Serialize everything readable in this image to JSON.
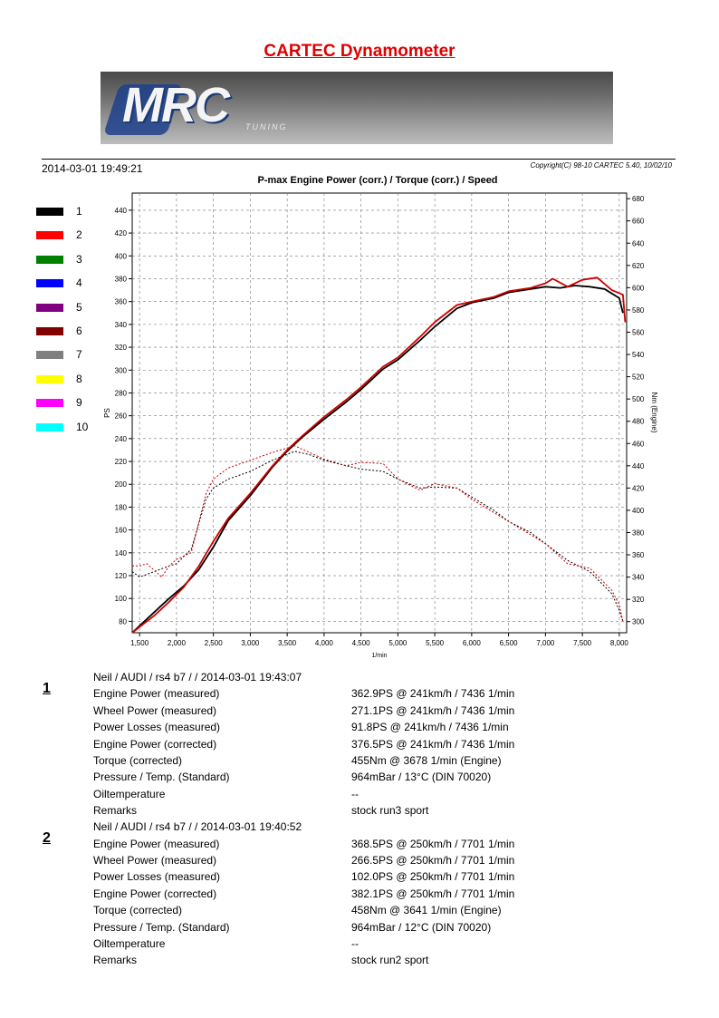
{
  "header": {
    "title": "CARTEC Dynamometer",
    "banner_logo_text": "MRC",
    "banner_logo_sub": "TUNING",
    "datetime": "2014-03-01 19:49:21",
    "copyright": "Copyright(C) 98-10 CARTEC 5.40, 10/02/10"
  },
  "legend": [
    {
      "label": "1",
      "color": "#000000"
    },
    {
      "label": "2",
      "color": "#ff0000"
    },
    {
      "label": "3",
      "color": "#008000"
    },
    {
      "label": "4",
      "color": "#0000ff"
    },
    {
      "label": "5",
      "color": "#800080"
    },
    {
      "label": "6",
      "color": "#800000"
    },
    {
      "label": "7",
      "color": "#808080"
    },
    {
      "label": "8",
      "color": "#ffff00"
    },
    {
      "label": "9",
      "color": "#ff00ff"
    },
    {
      "label": "10",
      "color": "#00ffff"
    }
  ],
  "chart_data": {
    "type": "line",
    "title": "P-max Engine Power (corr.) / Torque (corr.) / Speed",
    "xlabel": "1/min",
    "ylabel": "PS",
    "y2label": "Nm (Engine)",
    "xlim": [
      1400,
      8100
    ],
    "ylim": [
      70,
      455
    ],
    "y2lim": [
      290,
      685
    ],
    "x_ticks": [
      1500,
      2000,
      2500,
      3000,
      3500,
      4000,
      4500,
      5000,
      5500,
      6000,
      6500,
      7000,
      7500,
      8000
    ],
    "x_tick_labels": [
      "1,500",
      "2,000",
      "2,500",
      "3,000",
      "3,500",
      "4,000",
      "4,500",
      "5,000",
      "5,500",
      "6,000",
      "6,500",
      "7,000",
      "7,500",
      "8,000"
    ],
    "y_ticks": [
      80,
      100,
      120,
      140,
      160,
      180,
      200,
      220,
      240,
      260,
      280,
      300,
      320,
      340,
      360,
      380,
      400,
      420,
      440
    ],
    "y2_ticks": [
      300,
      320,
      340,
      360,
      380,
      400,
      420,
      440,
      460,
      480,
      500,
      520,
      540,
      560,
      580,
      600,
      620,
      640,
      660,
      680
    ],
    "grid": true,
    "series": [
      {
        "name": "1",
        "axis": "y",
        "kind": "power",
        "color": "#000000",
        "x": [
          1400,
          1500,
          1700,
          1900,
          2100,
          2300,
          2500,
          2700,
          3000,
          3300,
          3500,
          3700,
          4000,
          4300,
          4500,
          4800,
          5000,
          5300,
          5500,
          5800,
          6000,
          6300,
          6500,
          6800,
          7000,
          7200,
          7400,
          7600,
          7800,
          8000,
          8050
        ],
        "values": [
          70,
          76,
          88,
          100,
          111,
          125,
          145,
          168,
          190,
          215,
          229,
          241,
          257,
          272,
          283,
          301,
          309,
          326,
          338,
          354,
          359,
          363,
          368,
          371,
          373,
          372,
          374,
          373,
          371,
          363,
          350
        ]
      },
      {
        "name": "2",
        "axis": "y",
        "kind": "power",
        "color": "#cc0000",
        "x": [
          1400,
          1500,
          1700,
          1900,
          2100,
          2300,
          2500,
          2700,
          3000,
          3300,
          3500,
          3700,
          4000,
          4300,
          4500,
          4800,
          5000,
          5300,
          5500,
          5800,
          6000,
          6300,
          6500,
          6800,
          7000,
          7100,
          7300,
          7500,
          7700,
          7900,
          8050,
          8080
        ],
        "values": [
          70,
          75,
          85,
          97,
          110,
          128,
          150,
          170,
          192,
          216,
          230,
          242,
          259,
          274,
          285,
          303,
          311,
          329,
          342,
          357,
          360,
          364,
          369,
          372,
          376,
          380,
          373,
          379,
          381,
          370,
          366,
          342
        ]
      },
      {
        "name": "1",
        "axis": "y2",
        "kind": "torque",
        "color": "#000000",
        "x": [
          1400,
          1500,
          1700,
          1900,
          2000,
          2200,
          2400,
          2500,
          2700,
          3000,
          3300,
          3600,
          3800,
          4000,
          4300,
          4500,
          4800,
          5000,
          5300,
          5500,
          5800,
          6000,
          6300,
          6500,
          6800,
          7000,
          7300,
          7600,
          7900,
          8000,
          8050
        ],
        "values": [
          345,
          340,
          345,
          350,
          352,
          365,
          410,
          420,
          428,
          435,
          445,
          453,
          450,
          445,
          440,
          437,
          435,
          428,
          420,
          421,
          420,
          412,
          400,
          390,
          380,
          370,
          355,
          345,
          325,
          310,
          300
        ]
      },
      {
        "name": "2",
        "axis": "y2",
        "kind": "torque",
        "color": "#cc0000",
        "x": [
          1400,
          1500,
          1600,
          1800,
          1900,
          2000,
          2200,
          2400,
          2500,
          2700,
          3000,
          3300,
          3600,
          3800,
          4000,
          4300,
          4500,
          4800,
          5000,
          5300,
          5500,
          5800,
          6000,
          6300,
          6500,
          6800,
          7000,
          7300,
          7600,
          7900,
          8000,
          8050
        ],
        "values": [
          350,
          350,
          352,
          340,
          350,
          356,
          362,
          415,
          428,
          438,
          445,
          452,
          458,
          452,
          446,
          440,
          443,
          442,
          428,
          418,
          424,
          420,
          410,
          398,
          390,
          378,
          370,
          352,
          348,
          328,
          315,
          300
        ]
      }
    ]
  },
  "results": [
    {
      "number": "1",
      "header": "Neil / AUDI / rs4 b7 /  / 2014-03-01 19:43:07",
      "rows": [
        {
          "label": "Engine Power (measured)",
          "value": "362.9PS @ 241km/h / 7436 1/min"
        },
        {
          "label": "Wheel Power (measured)",
          "value": "271.1PS @ 241km/h / 7436 1/min"
        },
        {
          "label": "Power Losses (measured)",
          "value": "91.8PS @ 241km/h / 7436 1/min"
        },
        {
          "label": "Engine Power (corrected)",
          "value": "376.5PS @ 241km/h / 7436 1/min"
        },
        {
          "label": "Torque (corrected)",
          "value": "455Nm @ 3678 1/min (Engine)"
        },
        {
          "label": "Pressure / Temp. (Standard)",
          "value": "964mBar / 13°C   (DIN 70020)"
        },
        {
          "label": "Oiltemperature",
          "value": "--"
        },
        {
          "label": "Remarks",
          "value": "stock run3 sport"
        }
      ]
    },
    {
      "number": "2",
      "header": "Neil / AUDI / rs4 b7 /  / 2014-03-01 19:40:52",
      "rows": [
        {
          "label": "Engine Power (measured)",
          "value": "368.5PS @ 250km/h / 7701 1/min"
        },
        {
          "label": "Wheel Power (measured)",
          "value": "266.5PS @ 250km/h / 7701 1/min"
        },
        {
          "label": "Power Losses (measured)",
          "value": "102.0PS @ 250km/h / 7701 1/min"
        },
        {
          "label": "Engine Power (corrected)",
          "value": "382.1PS @ 250km/h / 7701 1/min"
        },
        {
          "label": "Torque (corrected)",
          "value": "458Nm @ 3641 1/min (Engine)"
        },
        {
          "label": "Pressure / Temp. (Standard)",
          "value": "964mBar / 12°C   (DIN 70020)"
        },
        {
          "label": "Oiltemperature",
          "value": "--"
        },
        {
          "label": "Remarks",
          "value": "stock run2 sport"
        }
      ]
    }
  ]
}
